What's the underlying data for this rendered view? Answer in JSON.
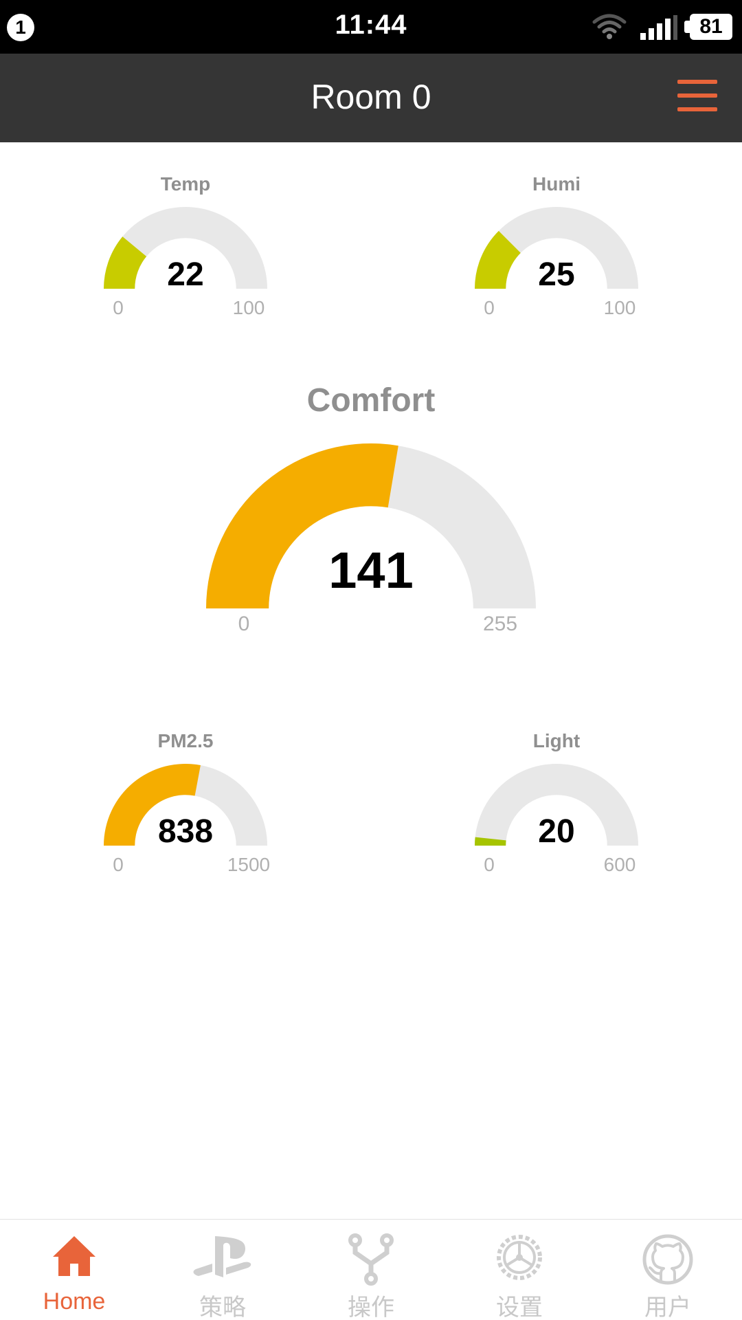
{
  "status_bar": {
    "notification_count": "1",
    "time": "11:44",
    "battery_level": "81",
    "icons": [
      "wifi-icon",
      "signal-icon",
      "battery-icon"
    ]
  },
  "header": {
    "title": "Room 0",
    "menu_icon": "hamburger-menu-icon"
  },
  "gauges": {
    "temp": {
      "label": "Temp",
      "value": "22",
      "min": "0",
      "max": "100",
      "fraction": 0.22,
      "color": "#c8cc00"
    },
    "humi": {
      "label": "Humi",
      "value": "25",
      "min": "0",
      "max": "100",
      "fraction": 0.25,
      "color": "#c8cc00"
    },
    "comfort": {
      "label": "Comfort",
      "value": "141",
      "min": "0",
      "max": "255",
      "fraction": 0.553,
      "color": "#f5ad00"
    },
    "pm25": {
      "label": "PM2.5",
      "value": "838",
      "min": "0",
      "max": "1500",
      "fraction": 0.559,
      "color": "#f5ad00"
    },
    "light": {
      "label": "Light",
      "value": "20",
      "min": "0",
      "max": "600",
      "fraction": 0.033,
      "color": "#a6c400"
    }
  },
  "track_color": "#e8e8e8",
  "bottom_nav": {
    "items": [
      {
        "label": "Home",
        "icon": "home-icon",
        "active": true
      },
      {
        "label": "策略",
        "icon": "playstation-icon",
        "active": false
      },
      {
        "label": "操作",
        "icon": "fork-icon",
        "active": false
      },
      {
        "label": "设置",
        "icon": "gear-icon",
        "active": false
      },
      {
        "label": "用户",
        "icon": "github-icon",
        "active": false
      }
    ]
  },
  "accent_color": "#e8643a"
}
